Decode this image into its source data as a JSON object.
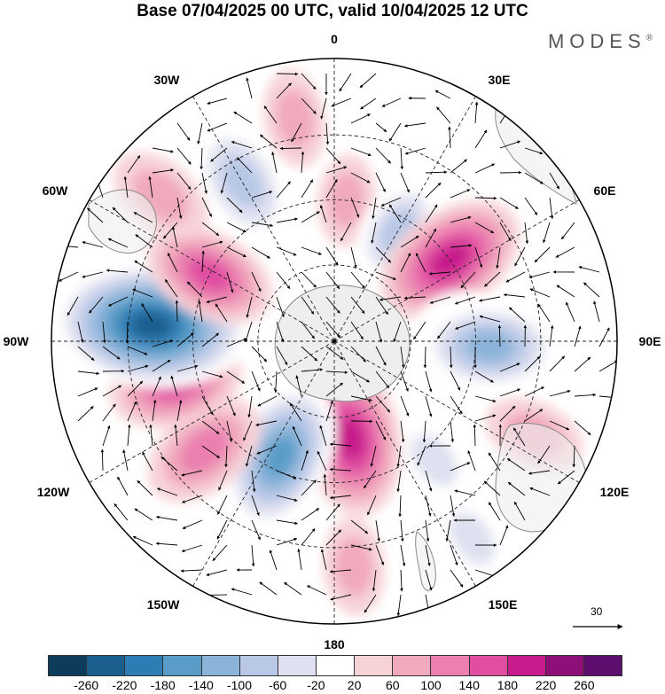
{
  "title": "Base 07/04/2025 00 UTC, valid 10/04/2025 12 UTC",
  "brand": "MODES",
  "brand_mark": "®",
  "longitude_labels": [
    "0",
    "30E",
    "60E",
    "90E",
    "120E",
    "150E",
    "180",
    "150W",
    "120W",
    "90W",
    "60W",
    "30W"
  ],
  "vector_scale_label": "30",
  "colorbar": {
    "ticks": [
      "-260",
      "-220",
      "-180",
      "-140",
      "-100",
      "-60",
      "-20",
      "20",
      "60",
      "100",
      "140",
      "180",
      "220",
      "260"
    ],
    "colors": [
      "#0d3b5c",
      "#1a5f8e",
      "#2d7db4",
      "#5a9cc8",
      "#8bb4d9",
      "#b8c8e6",
      "#dfe0f0",
      "#ffffff",
      "#f7d3d8",
      "#f1a9bd",
      "#ea7fb0",
      "#e04da1",
      "#c71d8c",
      "#8e0f78",
      "#5c0d6e"
    ]
  },
  "anomalies": [
    {
      "lon": 0,
      "r": 0.78,
      "value": -40
    },
    {
      "lon": 5,
      "r": 0.5,
      "value": 50
    },
    {
      "lon": 28,
      "r": 0.72,
      "value": -30
    },
    {
      "lon": 30,
      "r": 0.45,
      "value": -90
    },
    {
      "lon": 55,
      "r": 0.5,
      "value": 170
    },
    {
      "lon": 80,
      "r": 0.45,
      "value": -40
    },
    {
      "lon": 92,
      "r": 0.55,
      "value": -140
    },
    {
      "lon": 115,
      "r": 0.78,
      "value": 70
    },
    {
      "lon": 140,
      "r": 0.55,
      "value": -60
    },
    {
      "lon": 170,
      "r": 0.35,
      "value": 170
    },
    {
      "lon": 175,
      "r": 0.8,
      "value": 60
    },
    {
      "lon": 145,
      "r": 0.85,
      "value": -60
    },
    {
      "lon": 205,
      "r": 0.45,
      "value": -170
    },
    {
      "lon": 230,
      "r": 0.6,
      "value": 120
    },
    {
      "lon": 255,
      "r": 0.58,
      "value": 130
    },
    {
      "lon": 275,
      "r": 0.65,
      "value": -250
    },
    {
      "lon": 298,
      "r": 0.5,
      "value": 130
    },
    {
      "lon": 310,
      "r": 0.8,
      "value": 80
    },
    {
      "lon": 330,
      "r": 0.65,
      "value": -120
    },
    {
      "lon": 350,
      "r": 0.8,
      "value": 60
    }
  ]
}
